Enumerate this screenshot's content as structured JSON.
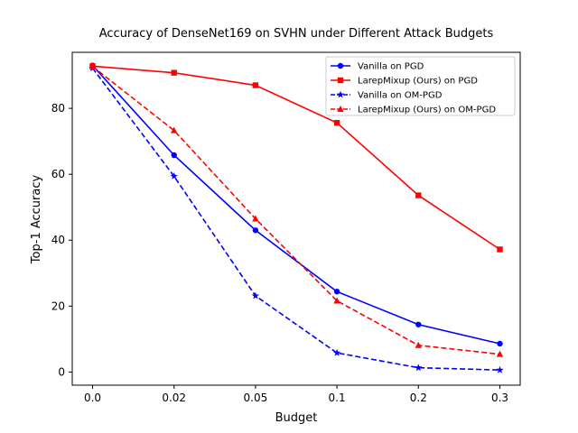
{
  "chart_data": {
    "type": "line",
    "title": "Accuracy of DenseNet169 on SVHN under Different Attack Budgets",
    "xlabel": "Budget",
    "ylabel": "Top-1 Accuracy",
    "categories": [
      "0.0",
      "0.02",
      "0.05",
      "0.1",
      "0.2",
      "0.3"
    ],
    "yticks": [
      0,
      20,
      40,
      60,
      80
    ],
    "ylim": [
      -4,
      97
    ],
    "legend_position": "top-right",
    "grid": false,
    "series": [
      {
        "name": "Vanilla on PGD",
        "values": [
          93.0,
          65.8,
          43.0,
          24.4,
          14.4,
          8.6
        ],
        "color": "#0000ff",
        "linestyle": "solid",
        "marker": "circle"
      },
      {
        "name": "LarepMixup (Ours) on PGD",
        "values": [
          92.8,
          90.8,
          87.0,
          75.6,
          53.6,
          37.2
        ],
        "color": "#ff0000",
        "linestyle": "solid",
        "marker": "square"
      },
      {
        "name": "Vanilla on OM-PGD",
        "values": [
          92.2,
          59.4,
          23.1,
          5.8,
          1.3,
          0.6
        ],
        "color": "#0000ff",
        "linestyle": "dashed",
        "marker": "star"
      },
      {
        "name": "LarepMixup (Ours) on OM-PGD",
        "values": [
          92.7,
          73.3,
          46.5,
          21.6,
          8.1,
          5.4
        ],
        "color": "#ff0000",
        "linestyle": "dashed",
        "marker": "triangle"
      }
    ]
  }
}
